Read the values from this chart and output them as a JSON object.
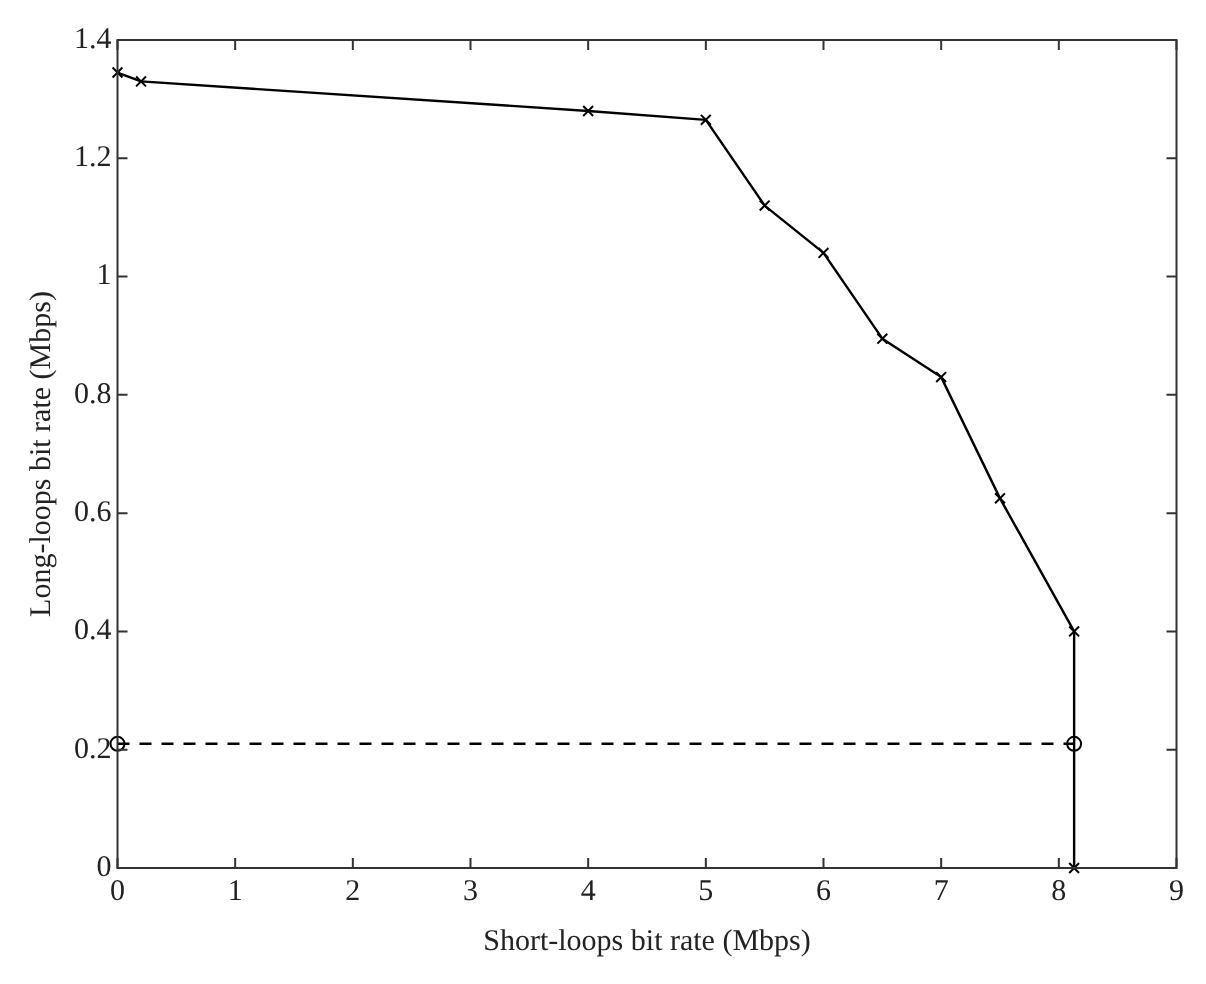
{
  "chart_data": {
    "type": "line",
    "xlabel": "Short-loops bit rate (Mbps)",
    "ylabel": "Long-loops bit rate (Mbps)",
    "xlim": [
      0,
      9
    ],
    "xticks": [
      0,
      1,
      2,
      3,
      4,
      5,
      6,
      7,
      8,
      9
    ],
    "ylim": [
      0,
      1.4
    ],
    "yticks": [
      0,
      {
        "value": 0.2,
        "label": "0.2"
      },
      {
        "value": 0.4,
        "label": "0.4"
      },
      {
        "value": 0.6,
        "label": "0.6"
      },
      {
        "value": 0.8,
        "label": "0.8"
      },
      1,
      {
        "value": 1.2,
        "label": "1.2"
      },
      {
        "value": 1.4,
        "label": "1.4"
      }
    ],
    "grid": false,
    "legend": false,
    "series": [
      {
        "color": "#000000",
        "marker": "cross",
        "line_style": "solid",
        "x": [
          0,
          0.2,
          4,
          5,
          5.5,
          6,
          6.5,
          7,
          7.5,
          8.13,
          8.13
        ],
        "values": [
          1.345,
          1.33,
          1.28,
          1.265,
          1.12,
          1.04,
          0.895,
          0.83,
          0.625,
          0.4,
          0
        ]
      },
      {
        "color": "#000000",
        "marker": "circle",
        "line_style": "dashed",
        "x": [
          0,
          8.13
        ],
        "values": [
          0.21,
          0.21
        ]
      }
    ]
  }
}
